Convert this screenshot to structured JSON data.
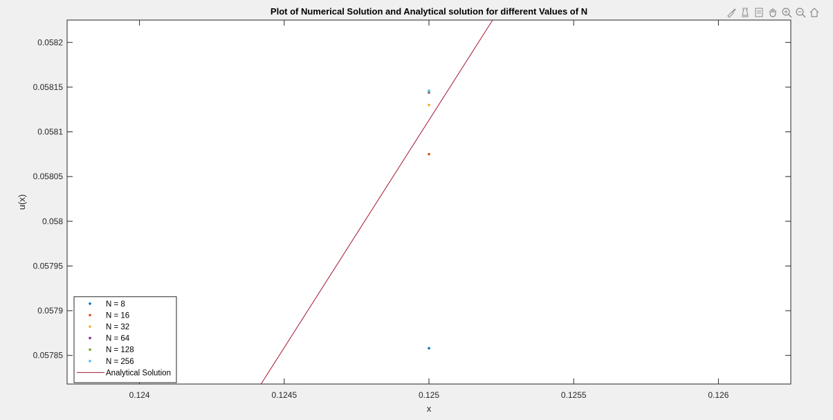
{
  "chart_data": {
    "type": "scatter",
    "title": "Plot of Numerical Solution and Analytical solution for different Values of N",
    "xlabel": "x",
    "ylabel": "u(x)",
    "xlim": [
      0.12375,
      0.12625
    ],
    "ylim": [
      0.057818,
      0.058225
    ],
    "x_ticks": [
      0.124,
      0.1245,
      0.125,
      0.1255,
      0.126
    ],
    "x_tick_labels": [
      "0.124",
      "0.1245",
      "0.125",
      "0.1255",
      "0.126"
    ],
    "y_ticks": [
      0.05785,
      0.0579,
      0.05795,
      0.058,
      0.05805,
      0.0581,
      0.05815,
      0.0582
    ],
    "y_tick_labels": [
      "0.05785",
      "0.0579",
      "0.05795",
      "0.058",
      "0.05805",
      "0.0581",
      "0.05815",
      "0.0582"
    ],
    "grid": false,
    "legend_position": "bottom-left",
    "series": [
      {
        "name": "N = 8",
        "type": "scatter",
        "color": "#0072bd",
        "points": [
          [
            0.125,
            0.057858
          ]
        ]
      },
      {
        "name": "N = 16",
        "type": "scatter",
        "color": "#d95319",
        "points": [
          [
            0.125,
            0.058075
          ]
        ]
      },
      {
        "name": "N = 32",
        "type": "scatter",
        "color": "#edb120",
        "points": [
          [
            0.125,
            0.05813
          ]
        ]
      },
      {
        "name": "N = 64",
        "type": "scatter",
        "color": "#7e2f8e",
        "points": [
          [
            0.125,
            0.058144
          ]
        ]
      },
      {
        "name": "N = 128",
        "type": "scatter",
        "color": "#77ac30",
        "points": [
          [
            0.125,
            0.058145
          ]
        ]
      },
      {
        "name": "N = 256",
        "type": "scatter",
        "color": "#4dbeee",
        "points": [
          [
            0.125,
            0.058146
          ]
        ]
      },
      {
        "name": "Analytical Solution",
        "type": "line",
        "color": "#a2142f",
        "points": [
          [
            0.12442,
            0.057818
          ],
          [
            0.12522,
            0.058225
          ]
        ]
      }
    ]
  },
  "toolbar": {
    "icons": [
      "brush-icon",
      "data-tips-icon",
      "export-icon",
      "pan-icon",
      "zoom-in-icon",
      "zoom-out-icon",
      "home-icon"
    ]
  }
}
